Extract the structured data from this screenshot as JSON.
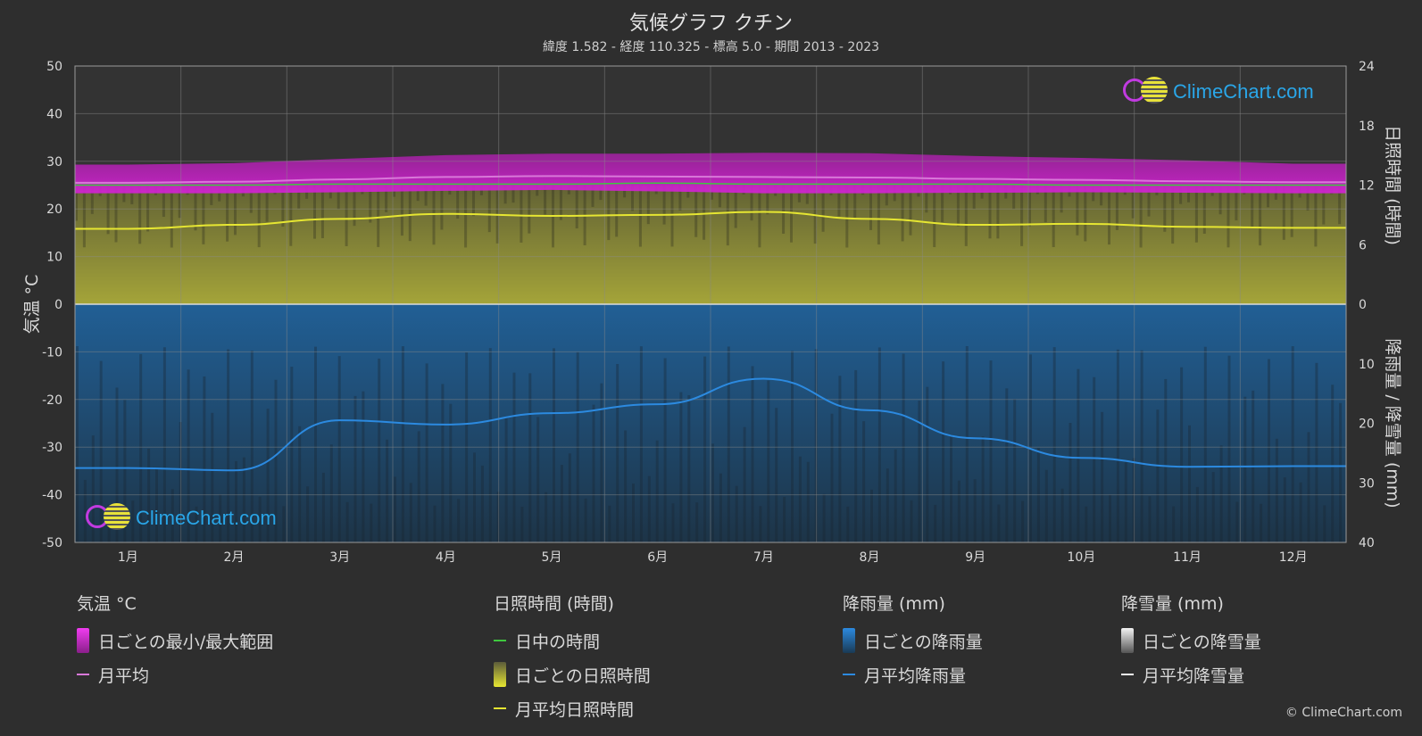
{
  "header": {
    "title": "気候グラフ クチン",
    "subtitle": "緯度 1.582 - 経度 110.325 - 標高 5.0 - 期間 2013 - 2023"
  },
  "brand": {
    "logo_text": "ClimeChart.com",
    "copyright": "© ClimeChart.com"
  },
  "colors": {
    "background": "#2e2e2e",
    "temp_range": "#e020e0",
    "temp_avg": "#d878d8",
    "daylight": "#3ec83e",
    "sunshine_bar": "#c8c832",
    "sunshine_avg": "#e6e632",
    "rain_bar": "#1f6fb0",
    "rain_avg": "#2c8ae0",
    "snow": "#e8e8e8"
  },
  "chart_data": {
    "type": "area",
    "months": [
      "1月",
      "2月",
      "3月",
      "4月",
      "5月",
      "6月",
      "7月",
      "8月",
      "9月",
      "10月",
      "11月",
      "12月"
    ],
    "axes": {
      "left": {
        "label": "気温 °C",
        "range": [
          -50,
          50
        ],
        "ticks": [
          "50",
          "40",
          "30",
          "20",
          "10",
          "0",
          "-10",
          "-20",
          "-30",
          "-40",
          "-50"
        ]
      },
      "right_top": {
        "label": "日照時間 (時間)",
        "range": [
          0,
          24
        ],
        "ticks": [
          "24",
          "18",
          "12",
          "6",
          "0"
        ]
      },
      "right_bottom": {
        "label": "降雨量 / 降雪量 (mm)",
        "range": [
          0,
          40
        ],
        "ticks": [
          "10",
          "20",
          "30",
          "40"
        ]
      }
    },
    "grid": true,
    "series": [
      {
        "name": "日ごとの最小/最大範囲",
        "min": [
          23.3,
          23.3,
          23.5,
          23.8,
          24.0,
          23.7,
          23.3,
          23.3,
          23.4,
          23.5,
          23.4,
          23.3
        ],
        "max": [
          29.3,
          29.6,
          30.5,
          31.3,
          31.6,
          31.6,
          31.8,
          31.7,
          31.1,
          30.7,
          30.2,
          29.5
        ]
      },
      {
        "name": "月平均",
        "values": [
          25.5,
          25.7,
          26.2,
          26.7,
          26.9,
          26.8,
          26.7,
          26.6,
          26.3,
          26.1,
          25.8,
          25.6
        ]
      },
      {
        "name": "日中の時間",
        "values": [
          12.0,
          12.0,
          12.1,
          12.1,
          12.1,
          12.2,
          12.1,
          12.1,
          12.1,
          12.0,
          12.0,
          12.0
        ]
      },
      {
        "name": "日ごとの日照時間",
        "values": [
          7.6,
          8.0,
          8.6,
          9.1,
          8.9,
          9.0,
          9.3,
          8.6,
          8.0,
          8.1,
          7.8,
          7.7
        ]
      },
      {
        "name": "月平均日照時間",
        "values": [
          7.6,
          8.0,
          8.6,
          9.1,
          8.9,
          9.0,
          9.3,
          8.6,
          8.0,
          8.1,
          7.8,
          7.7
        ]
      },
      {
        "name": "日ごとの降雨量",
        "values": [
          27.5,
          27.9,
          19.5,
          20.2,
          18.3,
          16.8,
          12.5,
          17.8,
          22.5,
          25.8,
          27.3,
          27.2
        ]
      },
      {
        "name": "月平均降雨量",
        "values": [
          27.5,
          27.9,
          19.5,
          20.2,
          18.3,
          16.8,
          12.5,
          17.8,
          22.5,
          25.8,
          27.3,
          27.2
        ]
      },
      {
        "name": "日ごとの降雪量",
        "values": [
          0,
          0,
          0,
          0,
          0,
          0,
          0,
          0,
          0,
          0,
          0,
          0
        ]
      },
      {
        "name": "月平均降雪量",
        "values": [
          0,
          0,
          0,
          0,
          0,
          0,
          0,
          0,
          0,
          0,
          0,
          0
        ]
      }
    ]
  },
  "legend": {
    "temperature": {
      "heading": "気温 °C",
      "items": [
        "日ごとの最小/最大範囲",
        "月平均"
      ]
    },
    "sunshine": {
      "heading": "日照時間 (時間)",
      "items": [
        "日中の時間",
        "日ごとの日照時間",
        "月平均日照時間"
      ]
    },
    "rain": {
      "heading": "降雨量 (mm)",
      "items": [
        "日ごとの降雨量",
        "月平均降雨量"
      ]
    },
    "snow": {
      "heading": "降雪量 (mm)",
      "items": [
        "日ごとの降雪量",
        "月平均降雪量"
      ]
    }
  }
}
